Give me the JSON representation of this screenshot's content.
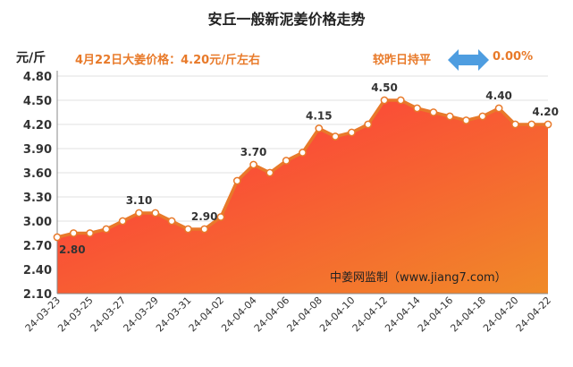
{
  "header": {
    "title": "安丘一般新泥姜价格走势",
    "unit": "元/斤",
    "price_note": "4月22日大姜价格：4.20元/斤左右",
    "change_label": "较昨日持平",
    "change_value": "0.00%",
    "change_icon": "double-arrow-icon"
  },
  "watermark": "中姜网监制（www.jiang7.com）",
  "colors": {
    "accent": "#e87a2a",
    "line": "#e8792a",
    "fill_top": "#ff2f3e",
    "fill_bottom": "#f08a28",
    "arrow": "#4e9de0"
  },
  "chart_data": {
    "type": "area",
    "title": "安丘一般新泥姜价格走势",
    "ylabel": "元/斤",
    "ylim": [
      2.1,
      4.8
    ],
    "yticks": [
      "2.10",
      "2.40",
      "2.70",
      "3.00",
      "3.30",
      "3.60",
      "3.90",
      "4.20",
      "4.50",
      "4.80"
    ],
    "grid": "horizontal",
    "xticks": [
      "24-03-23",
      "24-03-25",
      "24-03-27",
      "24-03-29",
      "24-03-31",
      "24-04-02",
      "24-04-04",
      "24-04-06",
      "24-04-08",
      "24-04-10",
      "24-04-12",
      "24-04-14",
      "24-04-16",
      "24-04-18",
      "24-04-20",
      "24-04-22"
    ],
    "x": [
      "24-03-23",
      "24-03-24",
      "24-03-25",
      "24-03-26",
      "24-03-27",
      "24-03-28",
      "24-03-29",
      "24-03-30",
      "24-03-31",
      "24-04-01",
      "24-04-02",
      "24-04-03",
      "24-04-04",
      "24-04-05",
      "24-04-06",
      "24-04-07",
      "24-04-08",
      "24-04-09",
      "24-04-10",
      "24-04-11",
      "24-04-12",
      "24-04-13",
      "24-04-14",
      "24-04-15",
      "24-04-16",
      "24-04-17",
      "24-04-18",
      "24-04-19",
      "24-04-20",
      "24-04-21",
      "24-04-22"
    ],
    "values": [
      2.8,
      2.85,
      2.85,
      2.9,
      3.0,
      3.1,
      3.1,
      3.0,
      2.9,
      2.9,
      3.05,
      3.5,
      3.7,
      3.6,
      3.75,
      3.85,
      4.15,
      4.05,
      4.1,
      4.2,
      4.5,
      4.5,
      4.4,
      4.35,
      4.3,
      4.25,
      4.3,
      4.4,
      4.2,
      4.2,
      4.2
    ],
    "data_labels": [
      {
        "index": 0,
        "text": "2.80",
        "pos": "below"
      },
      {
        "index": 5,
        "text": "3.10",
        "pos": "above"
      },
      {
        "index": 9,
        "text": "2.90",
        "pos": "above"
      },
      {
        "index": 12,
        "text": "3.70",
        "pos": "above"
      },
      {
        "index": 16,
        "text": "4.15",
        "pos": "above"
      },
      {
        "index": 20,
        "text": "4.50",
        "pos": "above"
      },
      {
        "index": 27,
        "text": "4.40",
        "pos": "above"
      },
      {
        "index": 30,
        "text": "4.20",
        "pos": "above"
      }
    ]
  }
}
